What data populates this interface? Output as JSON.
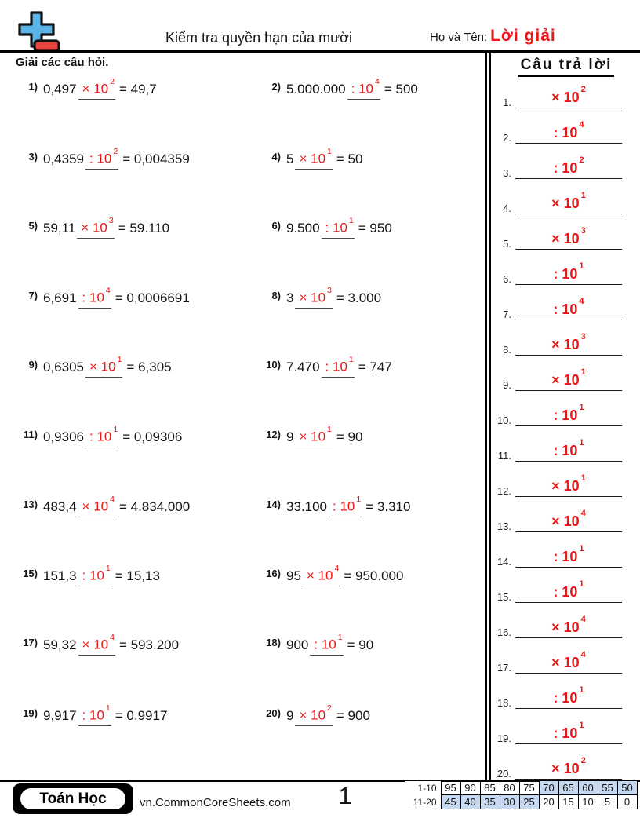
{
  "header": {
    "title": "Kiểm tra quyền hạn của mười",
    "name_label": "Họ và Tên:",
    "name_value": "Lời giải",
    "instruction": "Giải các câu hỏi.",
    "answers_title": "Câu trả lời"
  },
  "colors": {
    "red": "#ed1515",
    "cell_blue": "#c6d9f0",
    "logo_blue": "#5ab4e5",
    "logo_red": "#e2453c"
  },
  "strings": {
    "eq": "=",
    "base": "10"
  },
  "problems": [
    {
      "num": "1)",
      "prefix": "0,497",
      "op": "×",
      "exp": "2",
      "result": "49,7"
    },
    {
      "num": "2)",
      "prefix": "5.000.000",
      "op": ":",
      "exp": "4",
      "result": "500"
    },
    {
      "num": "3)",
      "prefix": "0,4359",
      "op": ":",
      "exp": "2",
      "result": "0,004359"
    },
    {
      "num": "4)",
      "prefix": "5",
      "op": "×",
      "exp": "1",
      "result": "50"
    },
    {
      "num": "5)",
      "prefix": "59,11",
      "op": "×",
      "exp": "3",
      "result": "59.110"
    },
    {
      "num": "6)",
      "prefix": "9.500",
      "op": ":",
      "exp": "1",
      "result": "950"
    },
    {
      "num": "7)",
      "prefix": "6,691",
      "op": ":",
      "exp": "4",
      "result": "0,0006691"
    },
    {
      "num": "8)",
      "prefix": "3",
      "op": "×",
      "exp": "3",
      "result": "3.000"
    },
    {
      "num": "9)",
      "prefix": "0,6305",
      "op": "×",
      "exp": "1",
      "result": "6,305"
    },
    {
      "num": "10)",
      "prefix": "7.470",
      "op": ":",
      "exp": "1",
      "result": "747"
    },
    {
      "num": "11)",
      "prefix": "0,9306",
      "op": ":",
      "exp": "1",
      "result": "0,09306"
    },
    {
      "num": "12)",
      "prefix": "9",
      "op": "×",
      "exp": "1",
      "result": "90"
    },
    {
      "num": "13)",
      "prefix": "483,4",
      "op": "×",
      "exp": "4",
      "result": "4.834.000"
    },
    {
      "num": "14)",
      "prefix": "33.100",
      "op": ":",
      "exp": "1",
      "result": "3.310"
    },
    {
      "num": "15)",
      "prefix": "151,3",
      "op": ":",
      "exp": "1",
      "result": "15,13"
    },
    {
      "num": "16)",
      "prefix": "95",
      "op": "×",
      "exp": "4",
      "result": "950.000"
    },
    {
      "num": "17)",
      "prefix": "59,32",
      "op": "×",
      "exp": "4",
      "result": "593.200"
    },
    {
      "num": "18)",
      "prefix": "900",
      "op": ":",
      "exp": "1",
      "result": "90"
    },
    {
      "num": "19)",
      "prefix": "9,917",
      "op": ":",
      "exp": "1",
      "result": "0,9917"
    },
    {
      "num": "20)",
      "prefix": "9",
      "op": "×",
      "exp": "2",
      "result": "900"
    }
  ],
  "answers": [
    {
      "num": "1.",
      "op": "×",
      "exp": "2"
    },
    {
      "num": "2.",
      "op": ":",
      "exp": "4"
    },
    {
      "num": "3.",
      "op": ":",
      "exp": "2"
    },
    {
      "num": "4.",
      "op": "×",
      "exp": "1"
    },
    {
      "num": "5.",
      "op": "×",
      "exp": "3"
    },
    {
      "num": "6.",
      "op": ":",
      "exp": "1"
    },
    {
      "num": "7.",
      "op": ":",
      "exp": "4"
    },
    {
      "num": "8.",
      "op": "×",
      "exp": "3"
    },
    {
      "num": "9.",
      "op": "×",
      "exp": "1"
    },
    {
      "num": "10.",
      "op": ":",
      "exp": "1"
    },
    {
      "num": "11.",
      "op": ":",
      "exp": "1"
    },
    {
      "num": "12.",
      "op": "×",
      "exp": "1"
    },
    {
      "num": "13.",
      "op": "×",
      "exp": "4"
    },
    {
      "num": "14.",
      "op": ":",
      "exp": "1"
    },
    {
      "num": "15.",
      "op": ":",
      "exp": "1"
    },
    {
      "num": "16.",
      "op": "×",
      "exp": "4"
    },
    {
      "num": "17.",
      "op": "×",
      "exp": "4"
    },
    {
      "num": "18.",
      "op": ":",
      "exp": "1"
    },
    {
      "num": "19.",
      "op": ":",
      "exp": "1"
    },
    {
      "num": "20.",
      "op": "×",
      "exp": "2"
    }
  ],
  "footer": {
    "badge": "Toán Học",
    "site": "vn.CommonCoreSheets.com",
    "page": "1",
    "grade_table": [
      {
        "label": "1-10",
        "cells": [
          "95",
          "90",
          "85",
          "80",
          "75",
          "70",
          "65",
          "60",
          "55",
          "50"
        ],
        "shaded": [
          false,
          false,
          false,
          false,
          false,
          true,
          true,
          true,
          true,
          true
        ]
      },
      {
        "label": "11-20",
        "cells": [
          "45",
          "40",
          "35",
          "30",
          "25",
          "20",
          "15",
          "10",
          "5",
          "0"
        ],
        "shaded": [
          true,
          true,
          true,
          true,
          true,
          false,
          false,
          false,
          false,
          false
        ]
      }
    ]
  }
}
